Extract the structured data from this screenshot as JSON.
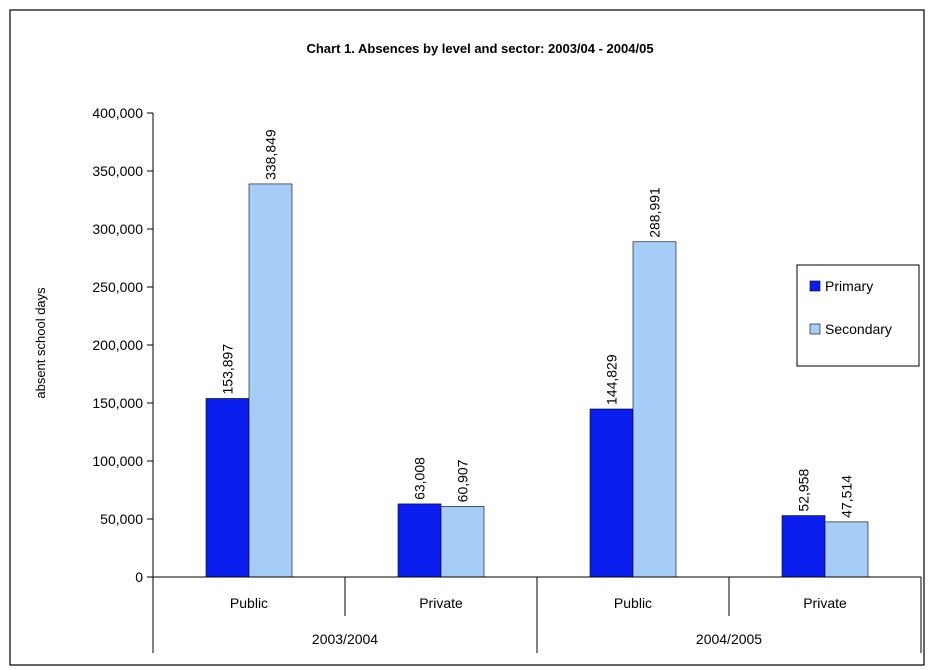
{
  "chart_data": {
    "type": "bar",
    "title": "Chart 1. Absences by level and sector: 2003/04 - 2004/05",
    "ylabel": "absent school days",
    "xlabel": "",
    "ylim": [
      0,
      400000
    ],
    "yticks": [
      0,
      50000,
      100000,
      150000,
      200000,
      250000,
      300000,
      350000,
      400000
    ],
    "ytick_labels": [
      "0",
      "50,000",
      "100,000",
      "150,000",
      "200,000",
      "250,000",
      "300,000",
      "350,000",
      "400,000"
    ],
    "categories": [
      "Public",
      "Private",
      "Public",
      "Private"
    ],
    "groups": [
      {
        "label": "2003/2004",
        "categories": [
          "Public",
          "Private"
        ]
      },
      {
        "label": "2004/2005",
        "categories": [
          "Public",
          "Private"
        ]
      }
    ],
    "series": [
      {
        "name": "Primary",
        "color": "#0A1EF0",
        "values": [
          153897,
          63008,
          144829,
          52958
        ],
        "labels": [
          "153,897",
          "63,008",
          "144,829",
          "52,958"
        ]
      },
      {
        "name": "Secondary",
        "color": "#A5CDF8",
        "values": [
          338849,
          60907,
          288991,
          47514
        ],
        "labels": [
          "338,849",
          "60,907",
          "288,991",
          "47,514"
        ]
      }
    ],
    "legend_position": "right",
    "grid": false
  }
}
